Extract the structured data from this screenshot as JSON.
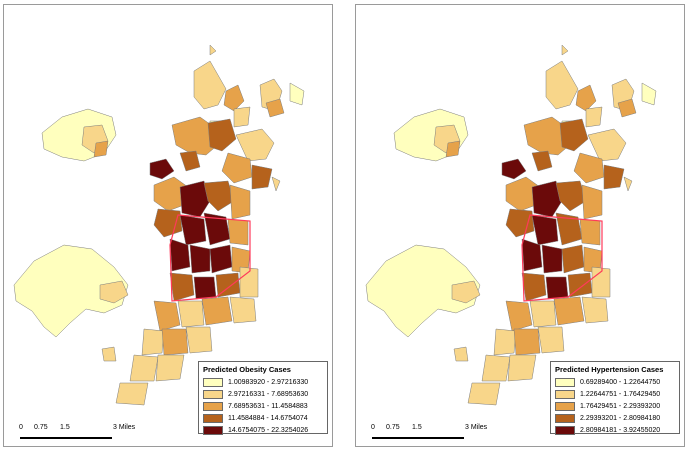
{
  "maps": [
    {
      "id": "obesity",
      "legend": {
        "title": "Predicted Obesity Cases",
        "classes": [
          {
            "label": "1.00983920 - 2.97216330",
            "color": "#ffffbe"
          },
          {
            "label": "2.97216331 - 7.68953630",
            "color": "#f8d68a"
          },
          {
            "label": "7.68953631 - 11.4584883",
            "color": "#e6a24a"
          },
          {
            "label": "11.4584884 - 14.6754074",
            "color": "#b5621c"
          },
          {
            "label": "14.6754075 - 22.3254026",
            "color": "#6b0a0a"
          }
        ]
      },
      "scale": {
        "ticks": [
          "0",
          "0.75",
          "1.5",
          "3 Miles"
        ]
      }
    },
    {
      "id": "hypertension",
      "legend": {
        "title": "Predicted Hypertension Cases",
        "classes": [
          {
            "label": "0.69289400 - 1.22644750",
            "color": "#ffffbe"
          },
          {
            "label": "1.22644751 - 1.76429450",
            "color": "#f8d68a"
          },
          {
            "label": "1.76429451 - 2.29393200",
            "color": "#e6a24a"
          },
          {
            "label": "2.29393201 - 2.80984180",
            "color": "#b5621c"
          },
          {
            "label": "2.80984181 - 3.92455020",
            "color": "#6b0a0a"
          }
        ]
      },
      "scale": {
        "ticks": [
          "0",
          "0.75",
          "1.5",
          "3 Miles"
        ]
      }
    }
  ]
}
